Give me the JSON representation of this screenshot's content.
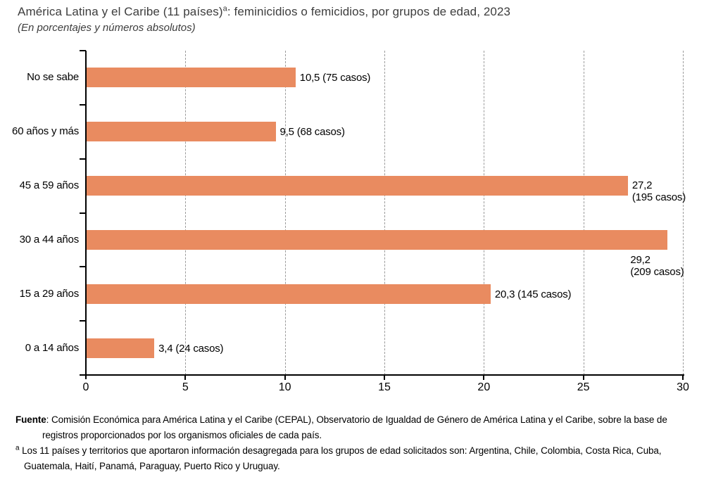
{
  "header": {
    "title_prefix": "América Latina y el Caribe (11 países)",
    "title_sup": "a",
    "title_suffix": ": feminicidios o femicidios, por grupos de edad, 2023",
    "subtitle": "(En porcentajes y números absolutos)"
  },
  "chart_data": {
    "type": "bar",
    "orientation": "horizontal",
    "title": "América Latina y el Caribe (11 países): feminicidios o femicidios, por grupos de edad, 2023",
    "subtitle": "(En porcentajes y números absolutos)",
    "categories": [
      "No se sabe",
      "60 años y más",
      "45 a 59 años",
      "30 a 44 años",
      "15 a 29 años",
      "0 a 14 años"
    ],
    "values": [
      10.5,
      9.5,
      27.2,
      29.2,
      20.3,
      3.4
    ],
    "cases": [
      75,
      68,
      195,
      209,
      145,
      24
    ],
    "value_labels": [
      "10,5 (75 casos)",
      "9,5 (68 casos)",
      "27,2\n(195 casos)",
      "29,2\n(209 casos)",
      "20,3 (145 casos)",
      "3,4 (24 casos)"
    ],
    "label_layout": [
      "inline",
      "inline",
      "wrap",
      "below",
      "inline",
      "inline"
    ],
    "xlim": [
      0,
      30
    ],
    "xticks": [
      0,
      5,
      10,
      15,
      20,
      25,
      30
    ],
    "xlabel": "",
    "ylabel": "",
    "grid": "dashed-vertical",
    "legend": "none",
    "bar_color": "#E98B60",
    "axis_color": "#000000",
    "gridline_color": "#9b9b9b"
  },
  "footer": {
    "source_label": "Fuente",
    "source_text": ": Comisión Económica para América Latina y el Caribe (CEPAL), Observatorio de Igualdad de Género de América Latina y el Caribe, sobre la base de registros proporcionados por los organismos oficiales de cada país.",
    "note_sup": "a",
    "note_text": "Los 11 países y territorios que aportaron información desagregada para los grupos de edad solicitados son: Argentina, Chile, Colombia, Costa Rica, Cuba, Guatemala, Haití, Panamá, Paraguay, Puerto Rico y Uruguay."
  }
}
